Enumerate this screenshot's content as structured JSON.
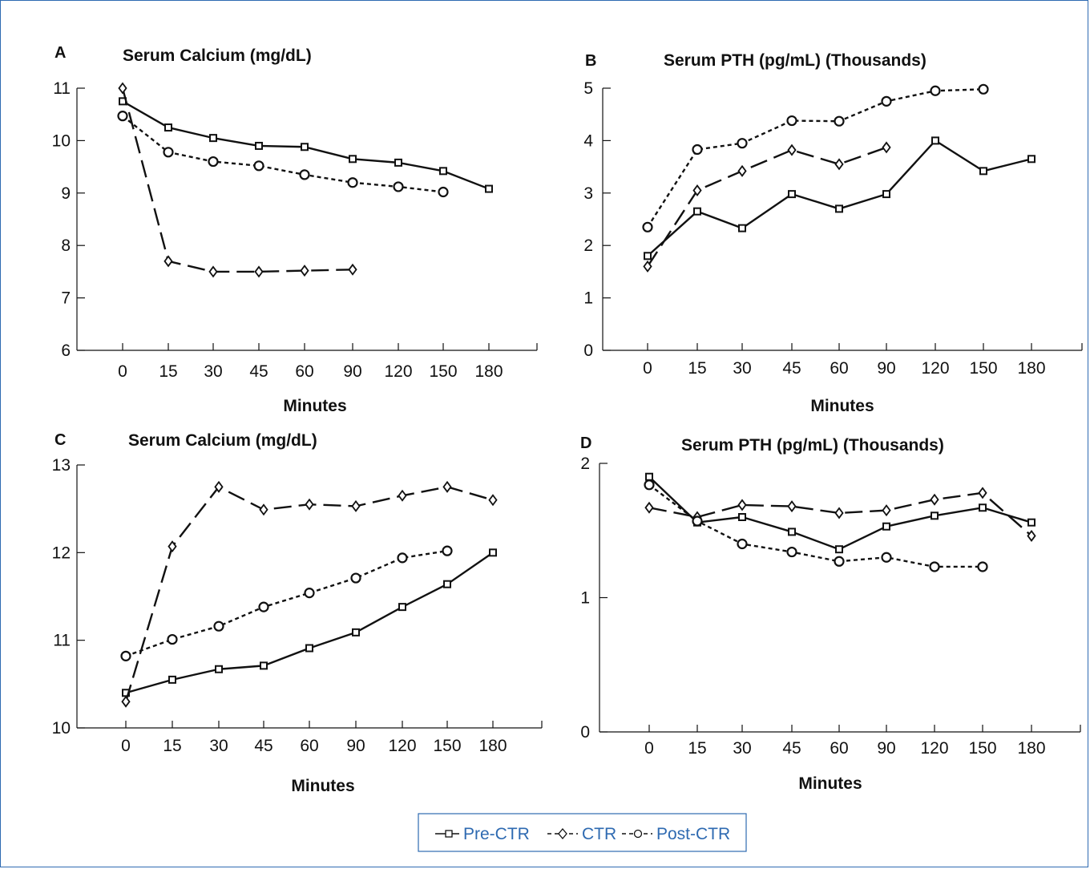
{
  "colors": {
    "frame": "#2e6ab1",
    "legend_text": "#2e6ab1",
    "ink": "#111111"
  },
  "legend": {
    "entries": [
      {
        "series": "Pre-CTR",
        "label": "Pre-CTR",
        "line": "solid",
        "marker": "square"
      },
      {
        "series": "CTR",
        "label": "CTR",
        "line": "dash",
        "marker": "diamond"
      },
      {
        "series": "Post-CTR",
        "label": "Post-CTR",
        "line": "dot",
        "marker": "circle"
      }
    ]
  },
  "chart_data": [
    {
      "panel": "A",
      "type": "line",
      "title": "Serum Calcium (mg/dL)",
      "xlabel": "Minutes",
      "ylabel": "",
      "categories": [
        "0",
        "15",
        "30",
        "45",
        "60",
        "90",
        "120",
        "150",
        "180"
      ],
      "yticks": [
        "6",
        "7",
        "8",
        "9",
        "10",
        "11"
      ],
      "ylim": [
        6,
        11
      ],
      "series": [
        {
          "name": "Pre-CTR",
          "values": [
            10.75,
            10.25,
            10.05,
            9.9,
            9.88,
            9.65,
            9.58,
            9.42,
            9.08
          ]
        },
        {
          "name": "CTR",
          "values": [
            11.0,
            7.7,
            7.5,
            7.5,
            7.52,
            7.54,
            null,
            null,
            null
          ]
        },
        {
          "name": "Post-CTR",
          "values": [
            10.47,
            9.78,
            9.6,
            9.52,
            9.35,
            9.2,
            9.12,
            9.02,
            null
          ]
        }
      ]
    },
    {
      "panel": "B",
      "type": "line",
      "title": "Serum PTH (pg/mL) (Thousands)",
      "xlabel": "Minutes",
      "ylabel": "",
      "categories": [
        "0",
        "15",
        "30",
        "45",
        "60",
        "90",
        "120",
        "150",
        "180"
      ],
      "yticks": [
        "0",
        "1",
        "2",
        "3",
        "4",
        "5"
      ],
      "ylim": [
        0,
        5
      ],
      "series": [
        {
          "name": "Pre-CTR",
          "values": [
            1.8,
            2.65,
            2.33,
            2.98,
            2.7,
            2.98,
            4.0,
            3.42,
            3.65
          ]
        },
        {
          "name": "CTR",
          "values": [
            1.6,
            3.05,
            3.42,
            3.82,
            3.55,
            3.87,
            null,
            null,
            null
          ]
        },
        {
          "name": "Post-CTR",
          "values": [
            2.35,
            3.83,
            3.95,
            4.38,
            4.37,
            4.75,
            4.95,
            4.98,
            null
          ]
        }
      ]
    },
    {
      "panel": "C",
      "type": "line",
      "title": "Serum Calcium (mg/dL)",
      "xlabel": "Minutes",
      "ylabel": "",
      "categories": [
        "0",
        "15",
        "30",
        "45",
        "60",
        "90",
        "120",
        "150",
        "180"
      ],
      "yticks": [
        "10",
        "11",
        "12",
        "13"
      ],
      "ylim": [
        10,
        13
      ],
      "series": [
        {
          "name": "Pre-CTR",
          "values": [
            10.4,
            10.55,
            10.67,
            10.71,
            10.91,
            11.09,
            11.38,
            11.64,
            12.0
          ]
        },
        {
          "name": "CTR",
          "values": [
            10.3,
            12.07,
            12.75,
            12.49,
            12.55,
            12.53,
            12.65,
            12.75,
            12.6
          ]
        },
        {
          "name": "Post-CTR",
          "values": [
            10.82,
            11.01,
            11.16,
            11.38,
            11.54,
            11.71,
            11.94,
            12.02,
            null
          ]
        }
      ]
    },
    {
      "panel": "D",
      "type": "line",
      "title": "Serum PTH (pg/mL) (Thousands)",
      "xlabel": "Minutes",
      "ylabel": "",
      "categories": [
        "0",
        "15",
        "30",
        "45",
        "60",
        "90",
        "120",
        "150",
        "180"
      ],
      "yticks": [
        "0",
        "1",
        "2"
      ],
      "ylim": [
        0,
        2
      ],
      "series": [
        {
          "name": "Pre-CTR",
          "values": [
            1.9,
            1.56,
            1.6,
            1.49,
            1.36,
            1.53,
            1.61,
            1.67,
            1.56
          ]
        },
        {
          "name": "CTR",
          "values": [
            1.67,
            1.6,
            1.69,
            1.68,
            1.63,
            1.65,
            1.73,
            1.78,
            1.46
          ]
        },
        {
          "name": "Post-CTR",
          "values": [
            1.84,
            1.57,
            1.4,
            1.34,
            1.27,
            1.3,
            1.23,
            1.23,
            null
          ]
        }
      ]
    }
  ]
}
